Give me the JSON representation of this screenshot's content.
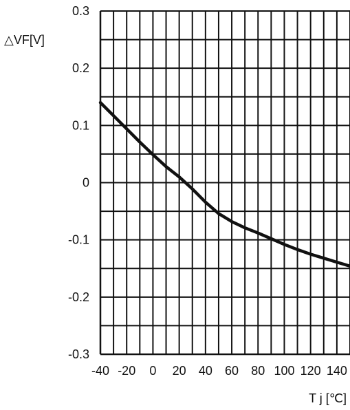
{
  "chart_data": {
    "type": "line",
    "title": "",
    "xlabel": "T j [℃]",
    "ylabel": "△VF[V]",
    "xlim": [
      -40,
      150
    ],
    "ylim": [
      -0.3,
      0.3
    ],
    "grid": true,
    "x_ticks": [
      -40,
      -20,
      0,
      20,
      40,
      60,
      80,
      100,
      120,
      140
    ],
    "x_tick_labels": [
      "-40",
      "-20",
      "0",
      "20",
      "40",
      "60",
      "80",
      "100",
      "120",
      "140"
    ],
    "y_ticks": [
      0.3,
      0.2,
      0.1,
      0,
      -0.1,
      -0.2,
      -0.3
    ],
    "y_tick_labels": [
      "0.3",
      "0.2",
      "0.1",
      "0",
      "-0.1",
      "-0.2",
      "-0.3"
    ],
    "series": [
      {
        "x": [
          -40,
          -30,
          -20,
          -10,
          0,
          10,
          20,
          30,
          40,
          50,
          60,
          70,
          80,
          90,
          100,
          110,
          120,
          130,
          140,
          150
        ],
        "y": [
          0.14,
          0.117,
          0.094,
          0.071,
          0.049,
          0.028,
          0.01,
          -0.011,
          -0.034,
          -0.054,
          -0.068,
          -0.079,
          -0.088,
          -0.098,
          -0.108,
          -0.117,
          -0.125,
          -0.132,
          -0.139,
          -0.146
        ]
      }
    ],
    "colors": {
      "line": "#111111",
      "grid": "#111111",
      "background": "#ffffff"
    }
  }
}
